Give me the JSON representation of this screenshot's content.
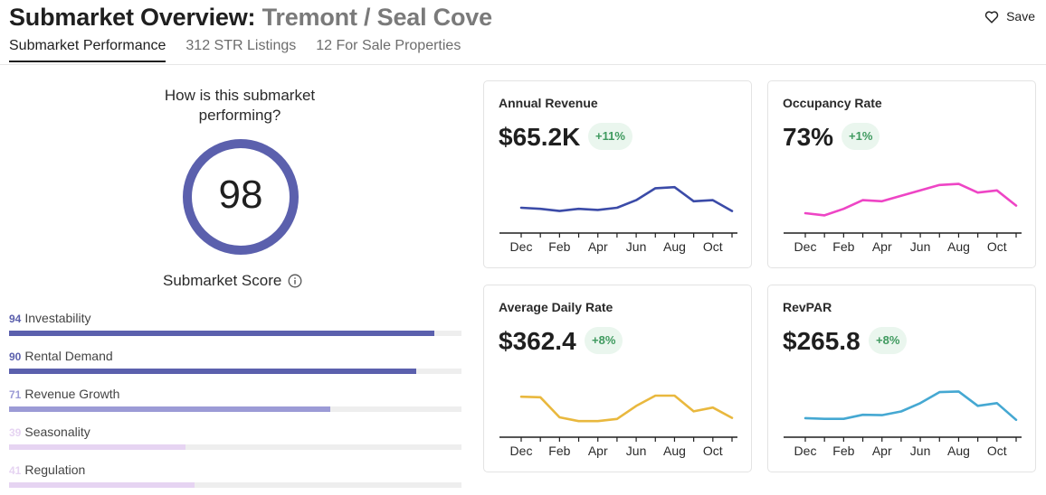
{
  "header": {
    "title_prefix": "Submarket Overview: ",
    "area": "Tremont / Seal Cove",
    "save_label": "Save"
  },
  "tabs": [
    {
      "label": "Submarket Performance",
      "active": true
    },
    {
      "label": "312 STR Listings",
      "active": false
    },
    {
      "label": "12 For Sale Properties",
      "active": false
    }
  ],
  "score": {
    "question": "How is this submarket performing?",
    "value": "98",
    "label": "Submarket Score",
    "ring_color": "#5b60ad"
  },
  "metrics": [
    {
      "value": "94",
      "label": "Investability",
      "fraction": 0.94,
      "color": "#5b60ad"
    },
    {
      "value": "90",
      "label": "Rental Demand",
      "fraction": 0.9,
      "color": "#5b60ad"
    },
    {
      "value": "71",
      "label": "Revenue Growth",
      "fraction": 0.71,
      "color": "#9c9bd6"
    },
    {
      "value": "39",
      "label": "Seasonality",
      "fraction": 0.39,
      "color": "#e6d4f2"
    },
    {
      "value": "41",
      "label": "Regulation",
      "fraction": 0.41,
      "color": "#e6d4f2"
    }
  ],
  "cards": [
    {
      "title": "Annual Revenue",
      "value": "$65.2K",
      "change": "+11%"
    },
    {
      "title": "Occupancy Rate",
      "value": "73%",
      "change": "+1%"
    },
    {
      "title": "Average Daily Rate",
      "value": "$362.4",
      "change": "+8%"
    },
    {
      "title": "RevPAR",
      "value": "$265.8",
      "change": "+8%"
    }
  ],
  "chart_data": [
    {
      "type": "line",
      "x": [
        "Dec",
        "Jan",
        "Feb",
        "Mar",
        "Apr",
        "May",
        "Jun",
        "Jul",
        "Aug",
        "Sep",
        "Oct",
        "Nov"
      ],
      "tick_labels": [
        "Dec",
        "Feb",
        "Apr",
        "Jun",
        "Aug",
        "Oct"
      ],
      "values": [
        45,
        44,
        42,
        44,
        43,
        45,
        52,
        63,
        64,
        51,
        52,
        42
      ],
      "ylim": [
        30,
        70
      ],
      "color": "#3b4ba8"
    },
    {
      "type": "line",
      "x": [
        "Dec",
        "Jan",
        "Feb",
        "Mar",
        "Apr",
        "May",
        "Jun",
        "Jul",
        "Aug",
        "Sep",
        "Oct",
        "Nov"
      ],
      "tick_labels": [
        "Dec",
        "Feb",
        "Apr",
        "Jun",
        "Aug",
        "Oct"
      ],
      "values": [
        60,
        58,
        64,
        72,
        71,
        76,
        81,
        86,
        87,
        79,
        81,
        67
      ],
      "ylim": [
        50,
        90
      ],
      "color": "#ee45c5"
    },
    {
      "type": "line",
      "x": [
        "Dec",
        "Jan",
        "Feb",
        "Mar",
        "Apr",
        "May",
        "Jun",
        "Jul",
        "Aug",
        "Sep",
        "Oct",
        "Nov"
      ],
      "tick_labels": [
        "Dec",
        "Feb",
        "Apr",
        "Jun",
        "Aug",
        "Oct"
      ],
      "values": [
        378,
        377,
        340,
        333,
        333,
        337,
        361,
        380,
        380,
        351,
        358,
        339
      ],
      "ylim": [
        320,
        400
      ],
      "color": "#e9b83e"
    },
    {
      "type": "line",
      "x": [
        "Dec",
        "Jan",
        "Feb",
        "Mar",
        "Apr",
        "May",
        "Jun",
        "Jul",
        "Aug",
        "Sep",
        "Oct",
        "Nov"
      ],
      "tick_labels": [
        "Dec",
        "Feb",
        "Apr",
        "Jun",
        "Aug",
        "Oct"
      ],
      "values": [
        200,
        198,
        198,
        210,
        209,
        220,
        245,
        278,
        280,
        237,
        245,
        195
      ],
      "ylim": [
        170,
        300
      ],
      "color": "#45a8d2"
    }
  ]
}
